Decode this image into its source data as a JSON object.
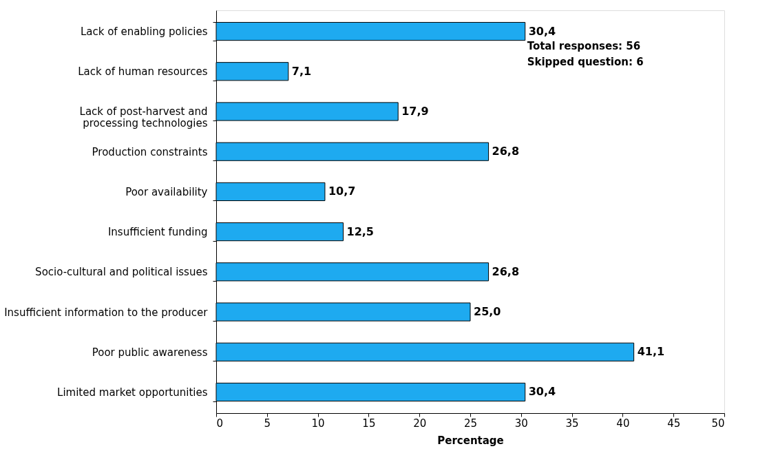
{
  "chart_data": {
    "type": "bar",
    "orientation": "horizontal",
    "xlabel": "Percentage",
    "categories": [
      "Lack of enabling policies",
      "Lack of human resources",
      "Lack of post-harvest and processing technologies",
      "Production constraints",
      "Poor availability",
      "Insufficient funding",
      "Socio-cultural and political issues",
      "Insufficient information to the producer",
      "Poor public awareness",
      "Limited market opportunities"
    ],
    "values": [
      30.4,
      7.1,
      17.9,
      26.8,
      10.7,
      12.5,
      26.8,
      25.0,
      41.1,
      30.4
    ],
    "value_labels": [
      "30,4",
      "7,1",
      "17,9",
      "26,8",
      "10,7",
      "12,5",
      "26,8",
      "25,0",
      "41,1",
      "30,4"
    ],
    "color": "#1eaaf0",
    "xlim": [
      0,
      50
    ],
    "xticks": [
      0,
      5,
      10,
      15,
      20,
      25,
      30,
      35,
      40,
      45,
      50
    ],
    "grid": false,
    "annotations": [
      "Total responses: 56",
      "Skipped question: 6"
    ]
  }
}
